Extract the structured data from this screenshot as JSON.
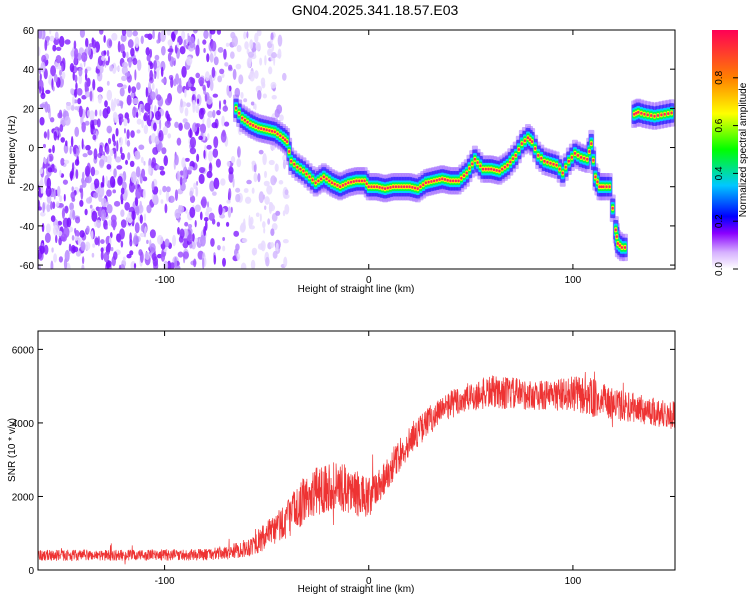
{
  "title": "GN04.2025.341.18.57.E03",
  "chart_data": [
    {
      "type": "heatmap",
      "xlabel": "Height of straight line (km)",
      "ylabel": "Frequency (Hz)",
      "xlim": [
        -162,
        150
      ],
      "ylim": [
        -62,
        60
      ],
      "xticks": [
        -100,
        0,
        100
      ],
      "yticks": [
        -60,
        -40,
        -20,
        0,
        20,
        40,
        60
      ],
      "colorbar": {
        "label": "Normalized spectral amplitude",
        "range": [
          0,
          1
        ],
        "ticks": [
          0.0,
          0.2,
          0.4,
          0.6,
          0.8
        ],
        "colors": [
          "#ffffff",
          "#8a00ff",
          "#0000ff",
          "#00c8ff",
          "#00ff00",
          "#ffff00",
          "#ff8000",
          "#ff0000"
        ]
      },
      "noise_region": {
        "x_from": -162,
        "x_to": -40
      },
      "ridge": {
        "x": [
          -65,
          -62,
          -58,
          -54,
          -50,
          -46,
          -42,
          -40,
          -38,
          -35,
          -32,
          -29,
          -26,
          -22,
          -18,
          -14,
          -10,
          -6,
          -2,
          0,
          4,
          8,
          12,
          16,
          20,
          24,
          28,
          32,
          36,
          40,
          44,
          48,
          52,
          56,
          60,
          64,
          68,
          72,
          75,
          78,
          80,
          83,
          86,
          89,
          92,
          95,
          98,
          101,
          104,
          107,
          109,
          111,
          113,
          115,
          118,
          121,
          122,
          124,
          127,
          130,
          132,
          135,
          140,
          145,
          150
        ],
        "y": [
          20,
          15,
          12,
          10,
          9,
          8,
          5,
          3,
          -7,
          -10,
          -12,
          -15,
          -18,
          -15,
          -18,
          -20,
          -18,
          -17,
          -17,
          -20,
          -20,
          -21,
          -20,
          -20,
          -20,
          -21,
          -18,
          -17,
          -16,
          -17,
          -17,
          -13,
          -6,
          -11,
          -11,
          -12,
          -9,
          -4,
          2,
          5,
          3,
          -4,
          -7,
          -8,
          -9,
          -13,
          -7,
          -3,
          -5,
          -6,
          2,
          -15,
          -20,
          -20,
          -20,
          -42,
          -49,
          -51,
          -51,
          17,
          18,
          17,
          16,
          17,
          18
        ]
      }
    },
    {
      "type": "line",
      "xlabel": "Height of straight line (km)",
      "ylabel": "SNR (10 * v/v)",
      "xlim": [
        -162,
        150
      ],
      "ylim": [
        0,
        6500
      ],
      "xticks": [
        -100,
        0,
        100
      ],
      "yticks": [
        0,
        2000,
        4000,
        6000
      ],
      "color": "#ee3333",
      "envelope": {
        "x": [
          -162,
          -120,
          -80,
          -70,
          -60,
          -50,
          -40,
          -30,
          -20,
          -10,
          0,
          10,
          20,
          30,
          40,
          50,
          60,
          70,
          80,
          90,
          100,
          108,
          120,
          130,
          140,
          150
        ],
        "mean": [
          400,
          400,
          420,
          460,
          600,
          900,
          1400,
          2000,
          2300,
          2200,
          1900,
          2700,
          3500,
          4100,
          4500,
          4700,
          4850,
          4800,
          4750,
          4750,
          4800,
          4700,
          4500,
          4400,
          4300,
          4200
        ],
        "spread": [
          150,
          150,
          160,
          180,
          250,
          400,
          550,
          650,
          700,
          650,
          600,
          450,
          400,
          400,
          400,
          420,
          450,
          450,
          400,
          420,
          480,
          550,
          450,
          400,
          400,
          400
        ]
      }
    }
  ]
}
